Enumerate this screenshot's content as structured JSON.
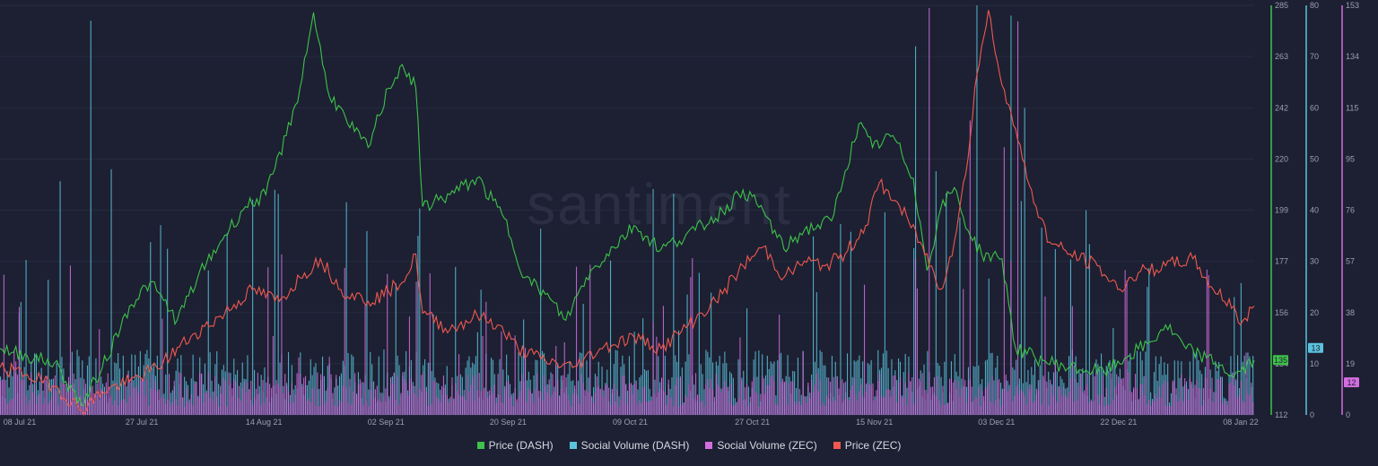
{
  "watermark": "santiment",
  "colors": {
    "background": "#1c2032",
    "price_dash": "#3ec24a",
    "social_dash": "#5cc2dc",
    "social_zec": "#d46de0",
    "price_zec": "#f0584f"
  },
  "chart_data": {
    "type": "line",
    "x_tick_labels": [
      "08 Jul 21",
      "27 Jul 21",
      "14 Aug 21",
      "02 Sep 21",
      "20 Sep 21",
      "09 Oct 21",
      "27 Oct 21",
      "15 Nov 21",
      "03 Dec 21",
      "22 Dec 21",
      "08 Jan 22"
    ],
    "x_range": [
      "2021-07-08",
      "2022-01-08"
    ],
    "grid": true,
    "legend_position": "bottom-center",
    "axes": {
      "price_dash": {
        "ticks": [
          "112",
          "134",
          "156",
          "177",
          "199",
          "220",
          "242",
          "263",
          "285"
        ],
        "range": [
          112,
          285
        ],
        "current": "135"
      },
      "social_dash": {
        "ticks": [
          "0",
          "10",
          "20",
          "30",
          "40",
          "50",
          "60",
          "70",
          "80"
        ],
        "range": [
          0,
          80
        ],
        "current": "13"
      },
      "social_zec": {
        "ticks": [
          "0",
          "19",
          "38",
          "57",
          "76",
          "95",
          "115",
          "134",
          "153"
        ],
        "range": [
          0,
          153
        ],
        "current": "12"
      }
    },
    "series": [
      {
        "name": "Price (DASH)",
        "key": "price_dash",
        "kind": "line",
        "axis": "price_dash",
        "points": [
          [
            "2021-07-08",
            140
          ],
          [
            "2021-07-12",
            137
          ],
          [
            "2021-07-16",
            134
          ],
          [
            "2021-07-20",
            116
          ],
          [
            "2021-07-23",
            132
          ],
          [
            "2021-07-27",
            158
          ],
          [
            "2021-07-30",
            168
          ],
          [
            "2021-08-03",
            152
          ],
          [
            "2021-08-06",
            170
          ],
          [
            "2021-08-10",
            188
          ],
          [
            "2021-08-13",
            200
          ],
          [
            "2021-08-16",
            205
          ],
          [
            "2021-08-19",
            230
          ],
          [
            "2021-08-21",
            250
          ],
          [
            "2021-08-23",
            282
          ],
          [
            "2021-08-25",
            250
          ],
          [
            "2021-08-28",
            235
          ],
          [
            "2021-08-31",
            225
          ],
          [
            "2021-09-03",
            250
          ],
          [
            "2021-09-05",
            260
          ],
          [
            "2021-09-07",
            250
          ],
          [
            "2021-09-08",
            200
          ],
          [
            "2021-09-12",
            205
          ],
          [
            "2021-09-16",
            212
          ],
          [
            "2021-09-20",
            195
          ],
          [
            "2021-09-23",
            170
          ],
          [
            "2021-09-26",
            163
          ],
          [
            "2021-09-29",
            152
          ],
          [
            "2021-10-02",
            170
          ],
          [
            "2021-10-05",
            180
          ],
          [
            "2021-10-09",
            192
          ],
          [
            "2021-10-13",
            182
          ],
          [
            "2021-10-18",
            190
          ],
          [
            "2021-10-22",
            198
          ],
          [
            "2021-10-25",
            207
          ],
          [
            "2021-10-28",
            198
          ],
          [
            "2021-10-31",
            182
          ],
          [
            "2021-11-03",
            190
          ],
          [
            "2021-11-07",
            194
          ],
          [
            "2021-11-09",
            215
          ],
          [
            "2021-11-11",
            235
          ],
          [
            "2021-11-13",
            225
          ],
          [
            "2021-11-16",
            230
          ],
          [
            "2021-11-19",
            212
          ],
          [
            "2021-11-21",
            173
          ],
          [
            "2021-11-23",
            199
          ],
          [
            "2021-11-25",
            208
          ],
          [
            "2021-11-27",
            190
          ],
          [
            "2021-11-29",
            180
          ],
          [
            "2021-12-02",
            178
          ],
          [
            "2021-12-04",
            140
          ],
          [
            "2021-12-08",
            135
          ],
          [
            "2021-12-12",
            132
          ],
          [
            "2021-12-17",
            130
          ],
          [
            "2021-12-20",
            136
          ],
          [
            "2021-12-24",
            143
          ],
          [
            "2021-12-26",
            150
          ],
          [
            "2021-12-29",
            140
          ],
          [
            "2022-01-01",
            136
          ],
          [
            "2022-01-03",
            133
          ],
          [
            "2022-01-05",
            128
          ],
          [
            "2022-01-08",
            135
          ]
        ]
      },
      {
        "name": "Price (ZEC)",
        "key": "price_zec",
        "kind": "line",
        "axis": "price_dash",
        "points": [
          [
            "2021-07-08",
            132
          ],
          [
            "2021-07-12",
            129
          ],
          [
            "2021-07-16",
            124
          ],
          [
            "2021-07-20",
            114
          ],
          [
            "2021-07-23",
            122
          ],
          [
            "2021-07-27",
            126
          ],
          [
            "2021-07-31",
            132
          ],
          [
            "2021-08-05",
            145
          ],
          [
            "2021-08-10",
            155
          ],
          [
            "2021-08-14",
            165
          ],
          [
            "2021-08-18",
            160
          ],
          [
            "2021-08-21",
            170
          ],
          [
            "2021-08-24",
            178
          ],
          [
            "2021-08-27",
            165
          ],
          [
            "2021-08-31",
            160
          ],
          [
            "2021-09-03",
            164
          ],
          [
            "2021-09-06",
            172
          ],
          [
            "2021-09-07",
            180
          ],
          [
            "2021-09-08",
            155
          ],
          [
            "2021-09-12",
            148
          ],
          [
            "2021-09-16",
            154
          ],
          [
            "2021-09-19",
            150
          ],
          [
            "2021-09-22",
            140
          ],
          [
            "2021-09-26",
            135
          ],
          [
            "2021-09-30",
            132
          ],
          [
            "2021-10-04",
            140
          ],
          [
            "2021-10-09",
            145
          ],
          [
            "2021-10-13",
            140
          ],
          [
            "2021-10-17",
            150
          ],
          [
            "2021-10-21",
            160
          ],
          [
            "2021-10-25",
            175
          ],
          [
            "2021-10-28",
            183
          ],
          [
            "2021-10-31",
            170
          ],
          [
            "2021-11-03",
            177
          ],
          [
            "2021-11-06",
            175
          ],
          [
            "2021-11-09",
            180
          ],
          [
            "2021-11-12",
            192
          ],
          [
            "2021-11-14",
            210
          ],
          [
            "2021-11-17",
            200
          ],
          [
            "2021-11-20",
            185
          ],
          [
            "2021-11-23",
            165
          ],
          [
            "2021-11-25",
            185
          ],
          [
            "2021-11-27",
            220
          ],
          [
            "2021-11-28",
            250
          ],
          [
            "2021-11-30",
            283
          ],
          [
            "2021-12-01",
            265
          ],
          [
            "2021-12-03",
            243
          ],
          [
            "2021-12-05",
            220
          ],
          [
            "2021-12-07",
            200
          ],
          [
            "2021-12-09",
            185
          ],
          [
            "2021-12-12",
            180
          ],
          [
            "2021-12-16",
            175
          ],
          [
            "2021-12-19",
            165
          ],
          [
            "2021-12-22",
            172
          ],
          [
            "2021-12-26",
            175
          ],
          [
            "2021-12-30",
            178
          ],
          [
            "2022-01-02",
            165
          ],
          [
            "2022-01-05",
            158
          ],
          [
            "2022-01-06",
            150
          ],
          [
            "2022-01-08",
            158
          ]
        ]
      }
    ],
    "bar_series": [
      {
        "name": "Social Volume (DASH)",
        "key": "social_dash",
        "axis": "social_dash",
        "spikes": [
          [
            "2021-07-21",
            77
          ],
          [
            "2021-07-24",
            48
          ],
          [
            "2021-09-07",
            35
          ],
          [
            "2021-11-19",
            72
          ],
          [
            "2021-11-28",
            80
          ],
          [
            "2021-12-03",
            78
          ],
          [
            "2021-12-05",
            60
          ],
          [
            "2021-12-14",
            40
          ],
          [
            "2021-12-23",
            25
          ]
        ],
        "baseline": 8
      },
      {
        "name": "Social Volume (ZEC)",
        "key": "social_zec",
        "axis": "social_zec",
        "spikes": [
          [
            "2021-11-21",
            152
          ],
          [
            "2021-12-04",
            147
          ],
          [
            "2021-12-02",
            100
          ],
          [
            "2021-08-18",
            60
          ],
          [
            "2021-11-27",
            110
          ]
        ],
        "baseline": 10
      }
    ]
  },
  "legend": [
    {
      "label": "Price (DASH)",
      "color": "#3ec24a"
    },
    {
      "label": "Social Volume (DASH)",
      "color": "#5cc2dc"
    },
    {
      "label": "Social Volume (ZEC)",
      "color": "#d46de0"
    },
    {
      "label": "Price (ZEC)",
      "color": "#f0584f"
    }
  ]
}
